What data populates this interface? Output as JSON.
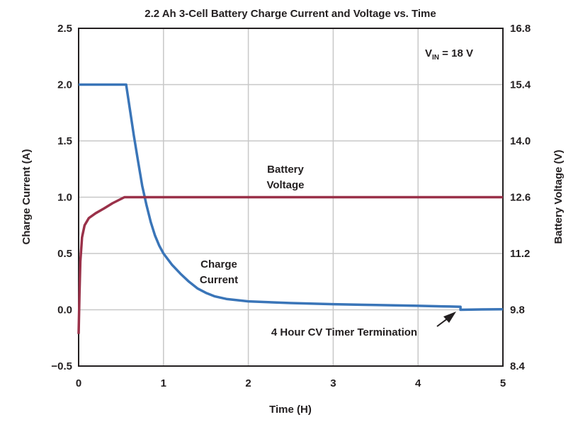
{
  "chart_data": {
    "type": "line",
    "title": "2.2 Ah 3-Cell Battery Charge Current and Voltage vs. Time",
    "xlabel": "Time (H)",
    "ylabel_left": "Charge Current (A)",
    "ylabel_right": "Battery Voltage (V)",
    "xlim": [
      0,
      5
    ],
    "ylim_left": [
      -0.5,
      2.5
    ],
    "ylim_right": [
      8.4,
      16.8
    ],
    "x_ticks": [
      "0",
      "1",
      "2",
      "3",
      "4",
      "5"
    ],
    "y_left_ticks": [
      "2.5",
      "2.0",
      "1.5",
      "1.0",
      "0.5",
      "0.0",
      "−0.5"
    ],
    "y_right_ticks": [
      "16.8",
      "15.4",
      "14.0",
      "12.6",
      "11.2",
      "9.8",
      "8.4"
    ],
    "grid": true,
    "vin_label": {
      "main": "V",
      "sub": "IN",
      "rest": " = 18 V"
    },
    "series": [
      {
        "name": "Charge Current",
        "axis": "left",
        "color": "#3a75b8",
        "points": [
          [
            0,
            2.0
          ],
          [
            0.56,
            2.0
          ],
          [
            0.6,
            1.8
          ],
          [
            0.65,
            1.55
          ],
          [
            0.7,
            1.32
          ],
          [
            0.75,
            1.1
          ],
          [
            0.8,
            0.93
          ],
          [
            0.85,
            0.78
          ],
          [
            0.9,
            0.66
          ],
          [
            0.95,
            0.57
          ],
          [
            1.0,
            0.5
          ],
          [
            1.1,
            0.4
          ],
          [
            1.2,
            0.32
          ],
          [
            1.3,
            0.25
          ],
          [
            1.4,
            0.19
          ],
          [
            1.5,
            0.15
          ],
          [
            1.6,
            0.12
          ],
          [
            1.75,
            0.095
          ],
          [
            2.0,
            0.075
          ],
          [
            2.5,
            0.06
          ],
          [
            3.0,
            0.05
          ],
          [
            3.5,
            0.042
          ],
          [
            4.0,
            0.035
          ],
          [
            4.3,
            0.03
          ],
          [
            4.5,
            0.027
          ],
          [
            4.5,
            0.0
          ],
          [
            4.75,
            0.003
          ],
          [
            5.0,
            0.005
          ]
        ]
      },
      {
        "name": "Battery Voltage",
        "axis": "right",
        "color": "#9a3149",
        "points": [
          [
            0.0,
            9.2
          ],
          [
            0.01,
            10.2
          ],
          [
            0.02,
            11.0
          ],
          [
            0.04,
            11.6
          ],
          [
            0.07,
            11.9
          ],
          [
            0.12,
            12.08
          ],
          [
            0.2,
            12.2
          ],
          [
            0.3,
            12.32
          ],
          [
            0.4,
            12.45
          ],
          [
            0.54,
            12.6
          ],
          [
            1.0,
            12.6
          ],
          [
            2.0,
            12.6
          ],
          [
            3.0,
            12.6
          ],
          [
            4.0,
            12.6
          ],
          [
            5.0,
            12.6
          ]
        ]
      }
    ],
    "annotations": {
      "battery_voltage": [
        "Battery",
        "Voltage"
      ],
      "charge_current": [
        "Charge",
        "Current"
      ],
      "termination": "4 Hour CV Timer Termination"
    }
  }
}
